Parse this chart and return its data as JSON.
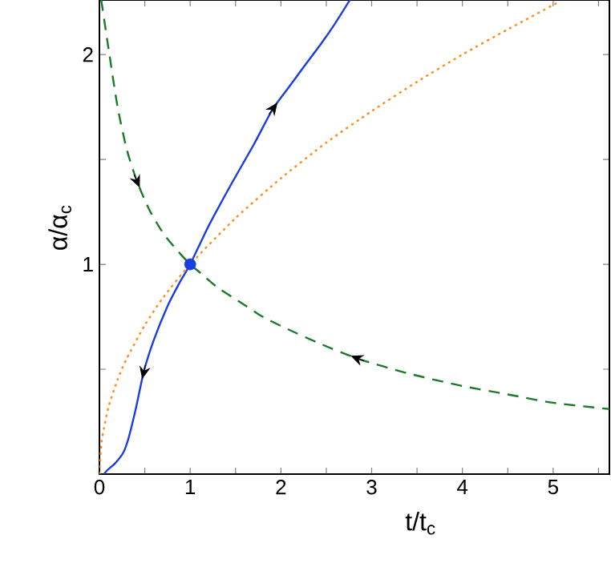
{
  "chart_data": {
    "type": "line",
    "xlabel": "t/t$_{c}$",
    "ylabel": "α/α$_{c}$",
    "xlim": [
      0,
      5.62
    ],
    "ylim": [
      0,
      2.26
    ],
    "xticks": [
      0,
      {
        "value": 0.5,
        "label": null
      },
      1,
      {
        "value": 1.5,
        "label": null
      },
      2,
      {
        "value": 2.5,
        "label": null
      },
      3,
      {
        "value": 3.5,
        "label": null
      },
      4,
      {
        "value": 4.5,
        "label": null
      },
      5,
      {
        "value": 5.5,
        "label": null
      }
    ],
    "yticks": [
      {
        "value": 0.5,
        "label": null
      },
      1,
      {
        "value": 1.5,
        "label": null
      },
      2
    ],
    "series": [
      {
        "color": "#1a3de0",
        "line_style": "solid",
        "x": [
          0.05,
          0.09,
          0.17,
          0.26,
          0.32,
          0.4,
          0.49,
          0.6,
          0.75,
          0.88,
          1,
          1.2,
          1.45,
          1.7,
          1.91,
          2.08,
          2.25,
          2.44,
          2.6,
          2.76
        ],
        "values": [
          0,
          0.02,
          0.05,
          0.1,
          0.17,
          0.31,
          0.49,
          0.64,
          0.8,
          0.91,
          1,
          1.18,
          1.38,
          1.57,
          1.74,
          1.84,
          1.94,
          2.05,
          2.15,
          2.26
        ]
      },
      {
        "color": "#ff8c1a",
        "line_style": "dotted",
        "x": [
          0,
          0.02,
          0.05,
          0.1,
          0.2,
          0.3,
          0.5,
          0.7,
          1,
          1.5,
          2,
          2.5,
          3,
          3.5,
          4,
          4.5,
          5.06
        ],
        "values": [
          0,
          0.14,
          0.22,
          0.32,
          0.45,
          0.55,
          0.71,
          0.84,
          1,
          1.22,
          1.41,
          1.58,
          1.73,
          1.87,
          2,
          2.12,
          2.25
        ]
      },
      {
        "color": "#1a7a2a",
        "line_style": "dashed",
        "x": [
          0.02,
          0.11,
          0.2,
          0.3,
          0.41,
          0.55,
          0.7,
          0.85,
          1,
          1.11,
          1.3,
          1.55,
          1.8,
          2.08,
          2.44,
          2.85,
          3.4,
          4,
          4.5,
          5,
          5.62
        ],
        "values": [
          2.26,
          2.0,
          1.75,
          1.55,
          1.4,
          1.26,
          1.15,
          1.07,
          1,
          0.96,
          0.89,
          0.82,
          0.75,
          0.69,
          0.62,
          0.55,
          0.48,
          0.42,
          0.38,
          0.34,
          0.31
        ]
      },
      {
        "type": "scatter",
        "color": "#1a3de0",
        "marker": "circle",
        "x": [
          1
        ],
        "values": [
          1
        ]
      }
    ]
  }
}
